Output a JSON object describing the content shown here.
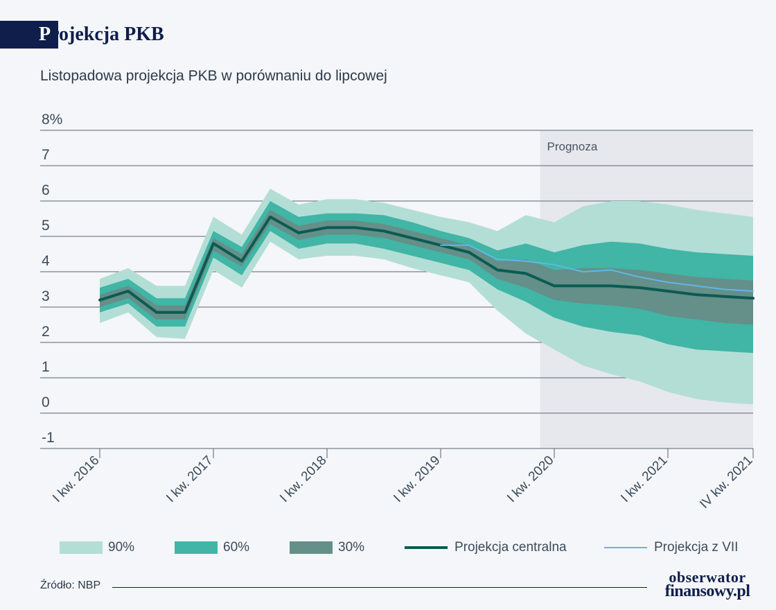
{
  "header": {
    "title_first_letter": "P",
    "title_rest": "rojekcja PKB",
    "subtitle": "Listopadowa projekcja PKB w porównaniu do lipcowej"
  },
  "footer": {
    "source": "Źródło: NBP",
    "logo_line1": "obserwator",
    "logo_line2": "finansowy.pl"
  },
  "colors": {
    "band90": "#b3ded6",
    "band60": "#41b5a6",
    "band30": "#658f89",
    "central": "#0b5b52",
    "july": "#5fb8e8",
    "forecast_bg": "#e6e8ed",
    "grid": "#5a6370",
    "navy": "#0f1e4a"
  },
  "chart_data": {
    "type": "area",
    "title": "Listopadowa projekcja PKB w porównaniu do lipcowej",
    "ylim": [
      -1,
      8
    ],
    "yticks": [
      -1,
      0,
      1,
      2,
      3,
      4,
      5,
      6,
      7,
      8
    ],
    "ytick_labels": [
      "-1",
      "0",
      "1",
      "2",
      "3",
      "4",
      "5",
      "6",
      "7",
      "8%"
    ],
    "grid": true,
    "x_labels": [
      {
        "index": 0,
        "label": "I kw. 2016"
      },
      {
        "index": 4,
        "label": "I kw. 2017"
      },
      {
        "index": 8,
        "label": "I kw. 2018"
      },
      {
        "index": 12,
        "label": "I kw. 2019"
      },
      {
        "index": 16,
        "label": "I kw. 2020"
      },
      {
        "index": 20,
        "label": "I kw. 2021"
      },
      {
        "index": 23,
        "label": "IV kw. 2021"
      }
    ],
    "forecast": {
      "label": "Prognoza",
      "start_index": 15.5,
      "end_index": 23
    },
    "bands": [
      {
        "name": "90%",
        "lower": [
          2.55,
          2.85,
          2.15,
          2.1,
          4.05,
          3.55,
          4.85,
          4.35,
          4.45,
          4.45,
          4.35,
          4.1,
          3.9,
          3.7,
          2.9,
          2.25,
          1.8,
          1.35,
          1.1,
          0.9,
          0.6,
          0.4,
          0.3,
          0.25
        ],
        "upper": [
          3.8,
          4.1,
          3.6,
          3.6,
          5.55,
          5.05,
          6.35,
          5.9,
          6.05,
          6.05,
          5.95,
          5.75,
          5.55,
          5.4,
          5.15,
          5.6,
          5.4,
          5.85,
          6.0,
          6.0,
          5.9,
          5.75,
          5.65,
          5.55
        ]
      },
      {
        "name": "60%",
        "lower": [
          2.85,
          3.1,
          2.45,
          2.45,
          4.4,
          3.9,
          5.15,
          4.65,
          4.8,
          4.8,
          4.65,
          4.45,
          4.25,
          4.05,
          3.5,
          3.15,
          2.7,
          2.45,
          2.3,
          2.2,
          1.95,
          1.8,
          1.75,
          1.7
        ],
        "upper": [
          3.55,
          3.8,
          3.25,
          3.25,
          5.15,
          4.7,
          6.0,
          5.55,
          5.65,
          5.65,
          5.6,
          5.4,
          5.15,
          4.95,
          4.6,
          4.8,
          4.55,
          4.75,
          4.85,
          4.8,
          4.65,
          4.55,
          4.5,
          4.45
        ]
      },
      {
        "name": "30%",
        "lower": [
          3.0,
          3.25,
          2.65,
          2.65,
          4.6,
          4.15,
          5.35,
          4.9,
          5.05,
          5.05,
          4.95,
          4.75,
          4.55,
          4.35,
          3.8,
          3.55,
          3.2,
          3.1,
          3.05,
          2.95,
          2.75,
          2.65,
          2.55,
          2.5
        ],
        "upper": [
          3.35,
          3.6,
          3.05,
          3.05,
          4.95,
          4.5,
          5.75,
          5.3,
          5.45,
          5.45,
          5.35,
          5.15,
          4.95,
          4.75,
          4.3,
          4.35,
          4.05,
          4.1,
          4.1,
          4.05,
          3.95,
          3.85,
          3.8,
          3.75
        ]
      }
    ],
    "series": [
      {
        "name": "Projekcja centralna",
        "start_index": 0,
        "values": [
          3.2,
          3.45,
          2.85,
          2.85,
          4.8,
          4.3,
          5.55,
          5.1,
          5.25,
          5.25,
          5.15,
          4.95,
          4.75,
          4.55,
          4.05,
          3.95,
          3.6,
          3.6,
          3.6,
          3.55,
          3.45,
          3.35,
          3.3,
          3.25
        ]
      },
      {
        "name": "Projekcja z VII",
        "start_index": 12,
        "values": [
          4.75,
          4.75,
          4.35,
          4.3,
          4.2,
          4.0,
          4.05,
          3.85,
          3.7,
          3.6,
          3.5,
          3.45
        ]
      }
    ],
    "legend": [
      {
        "label": "90%",
        "kind": "swatch",
        "color_key": "band90"
      },
      {
        "label": "60%",
        "kind": "swatch",
        "color_key": "band60"
      },
      {
        "label": "30%",
        "kind": "swatch",
        "color_key": "band30"
      },
      {
        "label": "Projekcja centralna",
        "kind": "line",
        "color_key": "central"
      },
      {
        "label": "Projekcja z VII",
        "kind": "line",
        "color_key": "july"
      }
    ],
    "legend_position": "bottom"
  }
}
